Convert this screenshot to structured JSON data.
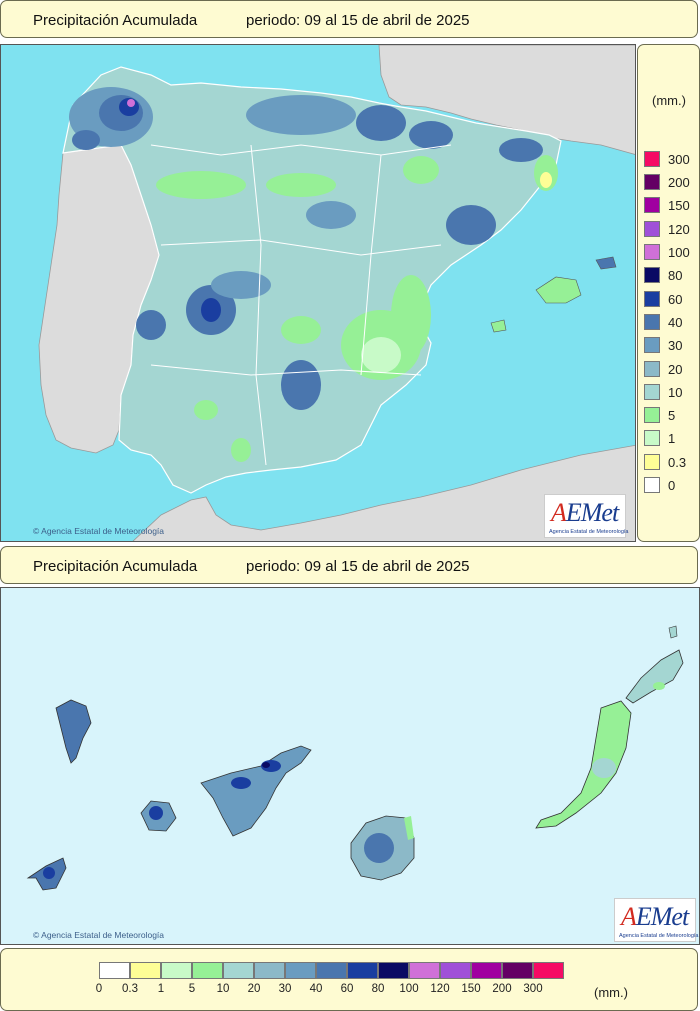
{
  "top_header": {
    "title": "Precipitación Acumulada",
    "period": "periodo: 09 al 15 de abril de 2025"
  },
  "bottom_header": {
    "title": "Precipitación Acumulada",
    "period": "periodo: 09 al 15 de abril de 2025"
  },
  "copyright": "© Agencia Estatal de Meteorología",
  "logo": {
    "text": "AEMet",
    "subtitle": "Agencia Estatal de Meteorología"
  },
  "legend": {
    "unit": "(mm.)",
    "classes": [
      {
        "label": "0",
        "color": "#ffffff"
      },
      {
        "label": "0.3",
        "color": "#fefe96"
      },
      {
        "label": "1",
        "color": "#c8fac8"
      },
      {
        "label": "5",
        "color": "#96f096"
      },
      {
        "label": "10",
        "color": "#a4d6d2"
      },
      {
        "label": "20",
        "color": "#8cb9c8"
      },
      {
        "label": "30",
        "color": "#6a9cc0"
      },
      {
        "label": "40",
        "color": "#4a76ae"
      },
      {
        "label": "60",
        "color": "#1a3ea0"
      },
      {
        "label": "80",
        "color": "#0a0a64"
      },
      {
        "label": "100",
        "color": "#d070d8"
      },
      {
        "label": "120",
        "color": "#a050d8"
      },
      {
        "label": "150",
        "color": "#a000a0"
      },
      {
        "label": "200",
        "color": "#640064"
      },
      {
        "label": "300",
        "color": "#f50a64"
      }
    ]
  },
  "colors": {
    "sea": "#7fe2f0",
    "foreign_land": "#dcdcdc",
    "canary_sea": "#d8f4fb",
    "panel_background": "#fefbd2",
    "borders": "#ffffff"
  }
}
